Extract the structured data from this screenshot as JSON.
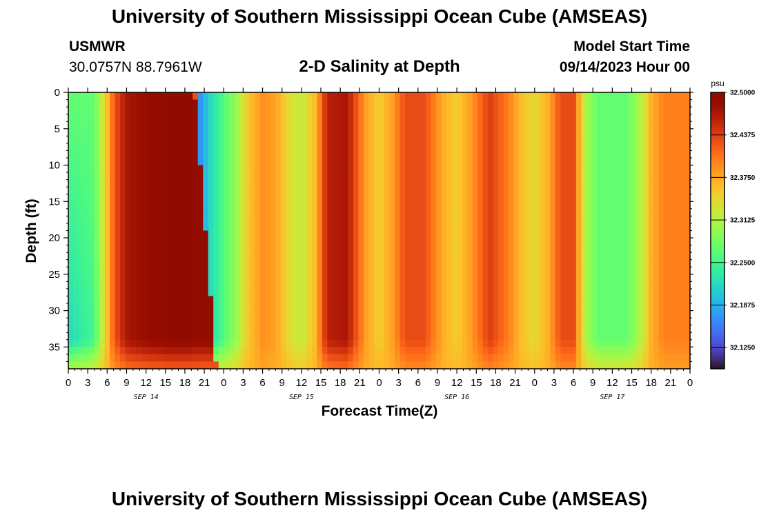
{
  "header": {
    "title": "University of Southern Mississippi Ocean Cube (AMSEAS)",
    "station": "USMWR",
    "coords": "30.0757N  88.7961W",
    "subtitle": "2-D Salinity at Depth",
    "start_label": "Model Start Time",
    "start_value": "09/14/2023 Hour 00"
  },
  "footer": {
    "title": "University of Southern Mississippi Ocean Cube (AMSEAS)"
  },
  "chart_data": {
    "type": "heatmap",
    "xlabel": "Forecast Time(Z)",
    "ylabel": "Depth (ft)",
    "x_tick_labels": [
      "0",
      "3",
      "6",
      "9",
      "12",
      "15",
      "18",
      "21",
      "0",
      "3",
      "6",
      "9",
      "12",
      "15",
      "18",
      "21",
      "0",
      "3",
      "6",
      "9",
      "12",
      "15",
      "18",
      "21",
      "0",
      "3",
      "6",
      "9",
      "12",
      "15",
      "18",
      "21",
      "0"
    ],
    "xlim_hours": [
      0,
      96
    ],
    "day_labels": [
      {
        "label": "SEP 14",
        "hour": 12
      },
      {
        "label": "SEP 15",
        "hour": 36
      },
      {
        "label": "SEP 16",
        "hour": 60
      },
      {
        "label": "SEP 17",
        "hour": 84
      }
    ],
    "y_ticks": [
      0,
      5,
      10,
      15,
      20,
      25,
      30,
      35
    ],
    "ylim_ft": [
      0,
      38
    ],
    "y_inverted": true,
    "colorbar": {
      "unit": "psu",
      "min": 32.0938,
      "max": 32.5,
      "tick_values": [
        32.5,
        32.4375,
        32.375,
        32.3125,
        32.25,
        32.1875,
        32.125
      ],
      "tick_labels": [
        "32.5000",
        "32.4375",
        "32.3750",
        "32.3125",
        "32.2500",
        "32.1875",
        "32.1250"
      ],
      "colormap": "turbo"
    },
    "surface_salinity_profile": [
      {
        "hour": 0,
        "psu": 32.27
      },
      {
        "hour": 4,
        "psu": 32.27
      },
      {
        "hour": 6,
        "psu": 32.36
      },
      {
        "hour": 7,
        "psu": 32.42
      },
      {
        "hour": 9,
        "psu": 32.47
      },
      {
        "hour": 12,
        "psu": 32.485
      },
      {
        "hour": 16,
        "psu": 32.495
      },
      {
        "hour": 19.5,
        "psu": 32.495
      },
      {
        "hour": 20,
        "psu": 32.16
      },
      {
        "hour": 22,
        "psu": 32.22
      },
      {
        "hour": 26,
        "psu": 32.3
      },
      {
        "hour": 28,
        "psu": 32.36
      },
      {
        "hour": 30,
        "psu": 32.39
      },
      {
        "hour": 32,
        "psu": 32.38
      },
      {
        "hour": 34,
        "psu": 32.34
      },
      {
        "hour": 36,
        "psu": 32.32
      },
      {
        "hour": 38,
        "psu": 32.36
      },
      {
        "hour": 40,
        "psu": 32.46
      },
      {
        "hour": 43,
        "psu": 32.47
      },
      {
        "hour": 46,
        "psu": 32.38
      },
      {
        "hour": 48,
        "psu": 32.35
      },
      {
        "hour": 50,
        "psu": 32.38
      },
      {
        "hour": 52,
        "psu": 32.43
      },
      {
        "hour": 55,
        "psu": 32.43
      },
      {
        "hour": 58,
        "psu": 32.37
      },
      {
        "hour": 60,
        "psu": 32.35
      },
      {
        "hour": 62,
        "psu": 32.38
      },
      {
        "hour": 65,
        "psu": 32.44
      },
      {
        "hour": 68,
        "psu": 32.4
      },
      {
        "hour": 70,
        "psu": 32.36
      },
      {
        "hour": 72,
        "psu": 32.34
      },
      {
        "hour": 74,
        "psu": 32.37
      },
      {
        "hour": 76,
        "psu": 32.43
      },
      {
        "hour": 78,
        "psu": 32.43
      },
      {
        "hour": 80,
        "psu": 32.3
      },
      {
        "hour": 82,
        "psu": 32.27
      },
      {
        "hour": 86,
        "psu": 32.27
      },
      {
        "hour": 88,
        "psu": 32.3
      },
      {
        "hour": 90,
        "psu": 32.37
      },
      {
        "hour": 92,
        "psu": 32.4
      },
      {
        "hour": 96,
        "psu": 32.4
      }
    ]
  }
}
